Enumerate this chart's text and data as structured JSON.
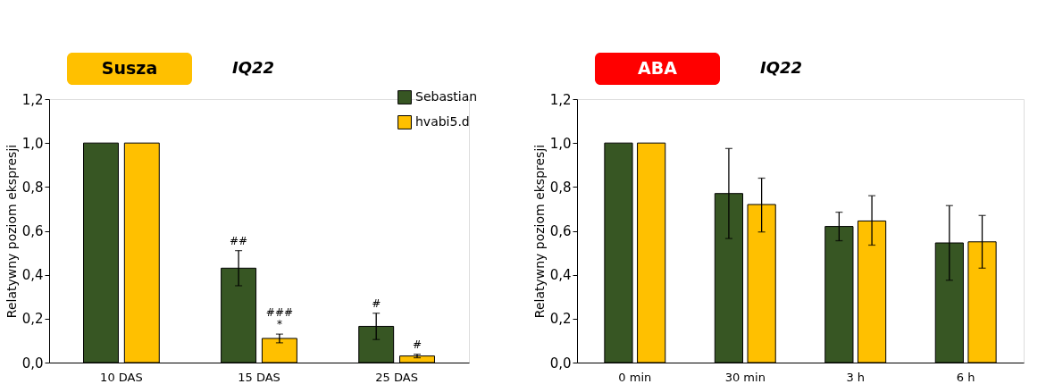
{
  "chart_data": [
    {
      "type": "bar",
      "title": "Susza",
      "subtitle": "IQ22",
      "ylabel": "Relatywny poziom ekspresji",
      "categories": [
        "10 DAS",
        "15 DAS",
        "25 DAS"
      ],
      "series": [
        {
          "name": "Sebastian",
          "color": "#375623",
          "values": [
            1.0,
            0.43,
            0.165
          ],
          "errors": [
            null,
            [
              0.35,
              0.51
            ],
            [
              0.105,
              0.225
            ]
          ],
          "value_labels": [
            null,
            "##",
            "#"
          ]
        },
        {
          "name": "hvabi5.d",
          "color": "#ffc000",
          "values": [
            1.0,
            0.11,
            0.03
          ],
          "errors": [
            null,
            [
              0.09,
              0.13
            ],
            [
              0.022,
              0.038
            ]
          ],
          "value_labels": [
            null,
            "###\n*",
            "#"
          ]
        }
      ],
      "ylim": [
        0,
        1.2
      ],
      "yticks": [
        {
          "value": 0,
          "label": "0,0"
        },
        {
          "value": 0.2,
          "label": "0,2"
        },
        {
          "value": 0.4,
          "label": "0,4"
        },
        {
          "value": 0.6,
          "label": "0,6"
        },
        {
          "value": 0.8,
          "label": "0,8"
        },
        {
          "value": 1.0,
          "label": "1,0"
        },
        {
          "value": 1.2,
          "label": "1,2"
        }
      ],
      "grid": false,
      "legend": "top right"
    },
    {
      "type": "bar",
      "title": "ABA",
      "subtitle": "IQ22",
      "ylabel": "Relatywny poziom ekspresji",
      "categories": [
        "0 min",
        "30 min",
        "3 h",
        "6 h"
      ],
      "series": [
        {
          "color": "#375623",
          "values": [
            1.0,
            0.77,
            0.62,
            0.545
          ],
          "errors": [
            null,
            [
              0.565,
              0.975
            ],
            [
              0.555,
              0.685
            ],
            [
              0.375,
              0.715
            ]
          ]
        },
        {
          "color": "#ffc000",
          "values": [
            1.0,
            0.72,
            0.645,
            0.55
          ],
          "errors": [
            null,
            [
              0.595,
              0.84
            ],
            [
              0.535,
              0.76
            ],
            [
              0.43,
              0.67
            ]
          ]
        }
      ],
      "ylim": [
        0,
        1.2
      ],
      "yticks": [
        {
          "value": 0,
          "label": "0,0"
        },
        {
          "value": 0.2,
          "label": "0,2"
        },
        {
          "value": 0.4,
          "label": "0,4"
        },
        {
          "value": 0.6,
          "label": "0,6"
        },
        {
          "value": 0.8,
          "label": "0,8"
        },
        {
          "value": 1.0,
          "label": "1,0"
        },
        {
          "value": 1.2,
          "label": "1,2"
        }
      ],
      "grid": false,
      "legend": false
    }
  ]
}
